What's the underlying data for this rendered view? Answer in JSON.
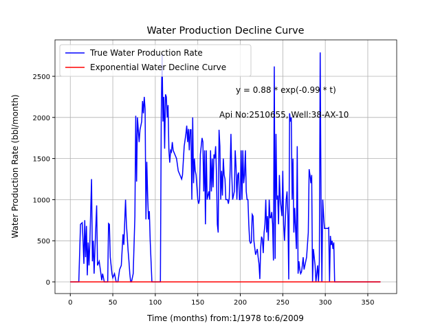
{
  "chart_data": {
    "type": "line",
    "title": "Water Production Decline Curve",
    "xlabel": "Time (months) from:1/1978 to:6/2009",
    "ylabel": "Water Production Rate (bbl/month)",
    "annotations": [
      "y = 0.88 * exp(-0.99 * t)",
      "Api No:2510655, Well:38-AX-10"
    ],
    "xlim": [
      -18,
      384
    ],
    "ylim": [
      -142,
      2943
    ],
    "xticks": [
      0,
      50,
      100,
      150,
      200,
      250,
      300,
      350
    ],
    "yticks": [
      0,
      500,
      1000,
      1500,
      2000,
      2500
    ],
    "grid": true,
    "legend": "upper left",
    "series": [
      {
        "name": "True Water Production Rate",
        "color": "#0000ff",
        "x": [
          0,
          10,
          12,
          14,
          15,
          16,
          17,
          18,
          19,
          20,
          21,
          22,
          23,
          25,
          26,
          27,
          28,
          29,
          31,
          32,
          34,
          36,
          37,
          38,
          40,
          44,
          45,
          46,
          47,
          48,
          49,
          50,
          52,
          54,
          56,
          58,
          60,
          62,
          63,
          65,
          66,
          67,
          68,
          69,
          70,
          71,
          72,
          74,
          76,
          77,
          78,
          79,
          81,
          82,
          84,
          85,
          86,
          87,
          88,
          89,
          90,
          91,
          92,
          93,
          94,
          96,
          106,
          107,
          108,
          109,
          110,
          111,
          112,
          113,
          114,
          115,
          116,
          117,
          118,
          119,
          120,
          121,
          123,
          125,
          127,
          129,
          131,
          132,
          134,
          136,
          137,
          138,
          139,
          140,
          141,
          142,
          143,
          144,
          145,
          146,
          147,
          148,
          150,
          151,
          152,
          153,
          154,
          155,
          156,
          157,
          158,
          159,
          160,
          161,
          162,
          163,
          164,
          165,
          166,
          167,
          168,
          169,
          170,
          171,
          172,
          173,
          174,
          175,
          176,
          177,
          178,
          179,
          180,
          181,
          182,
          183,
          185,
          186,
          187,
          188,
          189,
          190,
          191,
          193,
          194,
          195,
          196,
          197,
          198,
          199,
          200,
          201,
          202,
          203,
          204,
          205,
          206,
          207,
          208,
          209,
          210,
          211,
          212,
          213,
          214,
          215,
          216,
          218,
          220,
          221,
          222,
          223,
          224,
          225,
          226,
          227,
          228,
          229,
          230,
          231,
          232,
          233,
          234,
          235,
          236,
          237,
          238,
          239,
          240,
          241,
          242,
          243,
          244,
          245,
          246,
          247,
          248,
          249,
          250,
          251,
          252,
          254,
          255,
          256,
          257,
          258,
          259,
          260,
          261,
          262,
          263,
          264,
          266,
          267,
          268,
          269,
          270,
          271,
          272,
          273,
          274,
          275,
          276,
          278,
          280,
          281,
          282,
          283,
          284,
          285,
          286,
          287,
          288,
          289,
          290,
          291,
          292,
          293,
          294,
          295,
          296,
          297,
          298,
          299,
          303,
          304,
          305,
          306,
          307,
          308,
          309,
          310,
          311,
          365
        ],
        "values": [
          0,
          0,
          700,
          720,
          500,
          220,
          750,
          300,
          680,
          80,
          480,
          200,
          480,
          1250,
          250,
          500,
          100,
          400,
          930,
          200,
          250,
          100,
          20,
          100,
          0,
          0,
          710,
          700,
          300,
          200,
          100,
          50,
          100,
          0,
          0,
          150,
          200,
          580,
          450,
          1000,
          700,
          550,
          380,
          250,
          100,
          0,
          0,
          100,
          800,
          2020,
          1220,
          2000,
          1700,
          1850,
          1950,
          2200,
          2050,
          2250,
          2100,
          760,
          1460,
          1050,
          760,
          860,
          500,
          0,
          0,
          2000,
          2780,
          1950,
          2250,
          1620,
          2280,
          2250,
          2000,
          2150,
          1600,
          1450,
          1600,
          1580,
          1700,
          1600,
          1550,
          1500,
          1350,
          1300,
          1250,
          1300,
          1650,
          1800,
          1900,
          1700,
          1860,
          1600,
          1850,
          1850,
          1000,
          2000,
          1200,
          1500,
          1350,
          1300,
          1000,
          950,
          1000,
          1550,
          1650,
          1750,
          1700,
          1100,
          1600,
          700,
          1600,
          1000,
          1050,
          1100,
          1000,
          1600,
          1100,
          1500,
          1150,
          1550,
          1500,
          1650,
          1300,
          700,
          600,
          1850,
          1650,
          1000,
          1350,
          1050,
          1500,
          1300,
          1250,
          1000,
          1000,
          950,
          1020,
          1350,
          1800,
          1300,
          1000,
          1100,
          1600,
          1400,
          1000,
          1300,
          1330,
          1000,
          1000,
          1600,
          1000,
          1600,
          1200,
          1300,
          1600,
          1100,
          1000,
          1000,
          700,
          500,
          470,
          480,
          820,
          800,
          500,
          330,
          400,
          300,
          220,
          35,
          420,
          550,
          520,
          350,
          600,
          700,
          1000,
          600,
          800,
          500,
          1000,
          780,
          780,
          850,
          700,
          260,
          2620,
          280,
          1800,
          1000,
          1050,
          700,
          1300,
          1000,
          900,
          800,
          1350,
          700,
          500,
          1000,
          1100,
          800,
          30,
          2050,
          1950,
          2000,
          1000,
          1500,
          600,
          900,
          400,
          1650,
          100,
          250,
          150,
          100,
          120,
          200,
          300,
          150,
          200,
          300,
          600,
          1370,
          1300,
          1200,
          1300,
          0,
          400,
          300,
          200,
          0,
          100,
          200,
          0,
          250,
          2790,
          1000,
          0,
          1000,
          800,
          650,
          650,
          660,
          0,
          560,
          450,
          500,
          400,
          480,
          0,
          0
        ]
      },
      {
        "name": "Exponential Water Decline Curve",
        "color": "#ff0000",
        "x": [
          0,
          365
        ],
        "values": [
          0,
          0
        ]
      }
    ]
  }
}
